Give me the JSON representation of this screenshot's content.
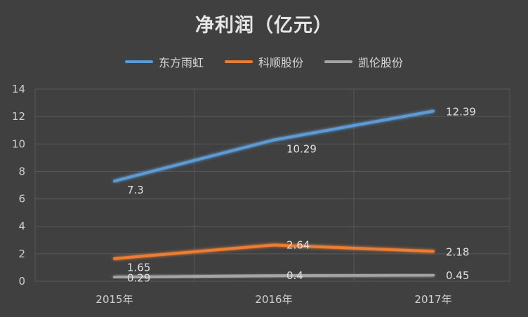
{
  "chart_data": {
    "type": "line",
    "title": "净利润（亿元）",
    "xlabel": "",
    "ylabel": "",
    "categories": [
      "2015年",
      "2016年",
      "2017年"
    ],
    "ylim": [
      0,
      14
    ],
    "yticks": [
      0,
      2,
      4,
      6,
      8,
      10,
      12,
      14
    ],
    "grid": true,
    "legend_position": "top",
    "series": [
      {
        "name": "东方雨虹",
        "values": [
          7.3,
          10.29,
          12.39
        ],
        "labels": [
          "7.3",
          "10.29",
          "12.39"
        ],
        "color": "#5b9bd5"
      },
      {
        "name": "科顺股份",
        "values": [
          1.65,
          2.64,
          2.18
        ],
        "labels": [
          "1.65",
          "2.64",
          "2.18"
        ],
        "color": "#ed7d31"
      },
      {
        "name": "凯伦股份",
        "values": [
          0.29,
          0.4,
          0.45
        ],
        "labels": [
          "0.29",
          "0.4",
          "0.45"
        ],
        "color": "#a5a5a5"
      }
    ]
  },
  "colors": {
    "background": "#404040",
    "gridline": "#595959"
  }
}
